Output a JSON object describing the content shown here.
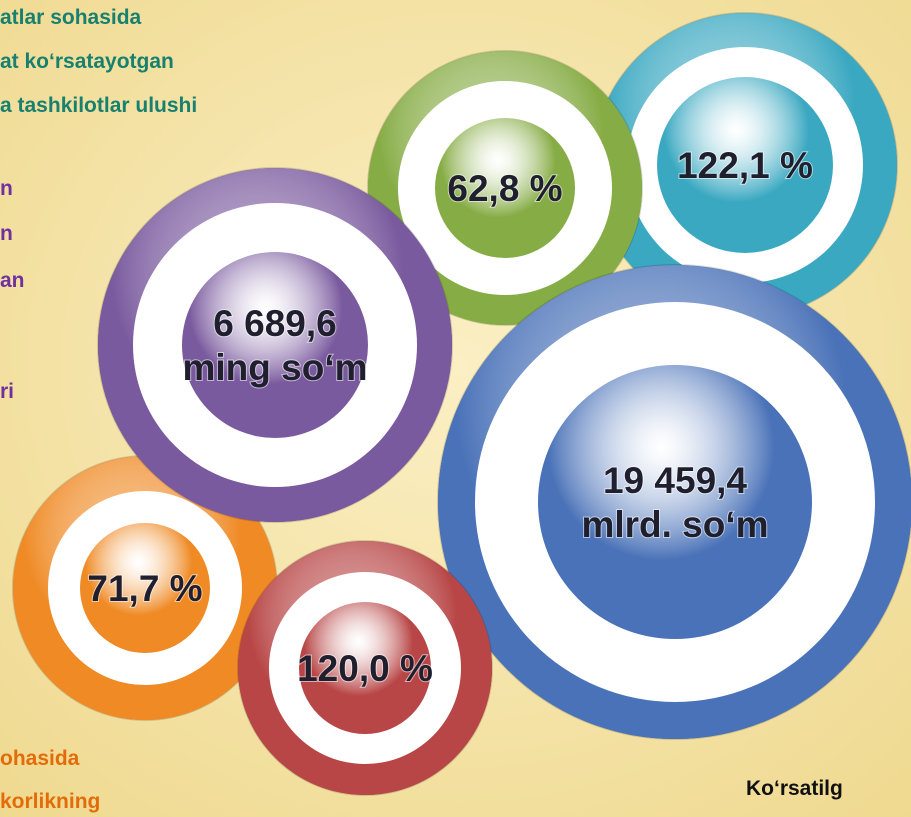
{
  "top_text": [
    "atlar sohasida",
    "at ko‘rsatayotgan",
    "a tashkilotlar ulushi"
  ],
  "left_text": [
    "n",
    "n",
    "an",
    "ri"
  ],
  "bottom_left_text": [
    "ohasida",
    "korlikning"
  ],
  "bottom_right_text": "Ko‘rsatilg",
  "circles": [
    {
      "lines": [
        "122,1 %"
      ],
      "color": "#3aa8c1"
    },
    {
      "lines": [
        "62,8 %"
      ],
      "color": "#86ac45"
    },
    {
      "lines": [
        "71,7 %"
      ],
      "color": "#ef8a25"
    },
    {
      "lines": [
        "6 689,6",
        "ming so‘m"
      ],
      "color": "#7a5a9e"
    },
    {
      "lines": [
        "19 459,4",
        "mlrd. so‘m"
      ],
      "color": "#4a72b8"
    },
    {
      "lines": [
        "120,0 %"
      ],
      "color": "#b84646"
    }
  ]
}
